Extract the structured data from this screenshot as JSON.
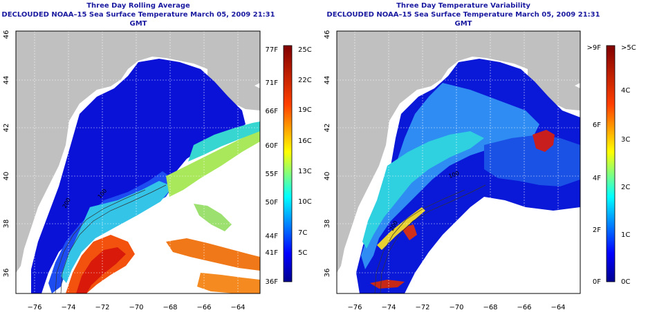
{
  "left_panel": {
    "title": "Three Day Rolling Average",
    "subtitle": "DECLOUDED NOAA–15 Sea Surface Temperature March 05, 2009 21:31 GMT",
    "lon_ticks": [
      "−76",
      "−74",
      "−72",
      "−70",
      "−68",
      "−66",
      "−64"
    ],
    "lat_ticks": [
      "36",
      "38",
      "40",
      "42",
      "44",
      "46"
    ],
    "colorbar": {
      "fahrenheit": [
        "77F",
        "71F",
        "66F",
        "60F",
        "55F",
        "50F",
        "44F",
        "41F",
        "36F"
      ],
      "celsius": [
        "25C",
        "22C",
        "19C",
        "16C",
        "13C",
        "10C",
        "7C",
        "5C"
      ]
    },
    "contour_labels": [
      "200",
      "100"
    ]
  },
  "right_panel": {
    "title": "Three Day Temperature Variability",
    "subtitle": "DECLOUDED NOAA–15 Sea Surface Temperature March 05, 2009 21:31 GMT",
    "lon_ticks": [
      "−76",
      "−74",
      "−72",
      "−70",
      "−68",
      "−66",
      "−64"
    ],
    "lat_ticks": [
      "36",
      "38",
      "40",
      "42",
      "44",
      "46"
    ],
    "colorbar": {
      "fahrenheit": [
        ">9F",
        "6F",
        "4F",
        "2F",
        "0F"
      ],
      "celsius": [
        ">5C",
        "4C",
        "3C",
        "2C",
        "1C",
        "0C"
      ]
    },
    "contour_labels": [
      "200",
      "100"
    ]
  },
  "colors": {
    "land": "#c0c0c0",
    "no_data": "#ffffff",
    "title": "#1a1aa0",
    "scale_cold": "#0000a0",
    "scale_warm": "#a00000"
  }
}
